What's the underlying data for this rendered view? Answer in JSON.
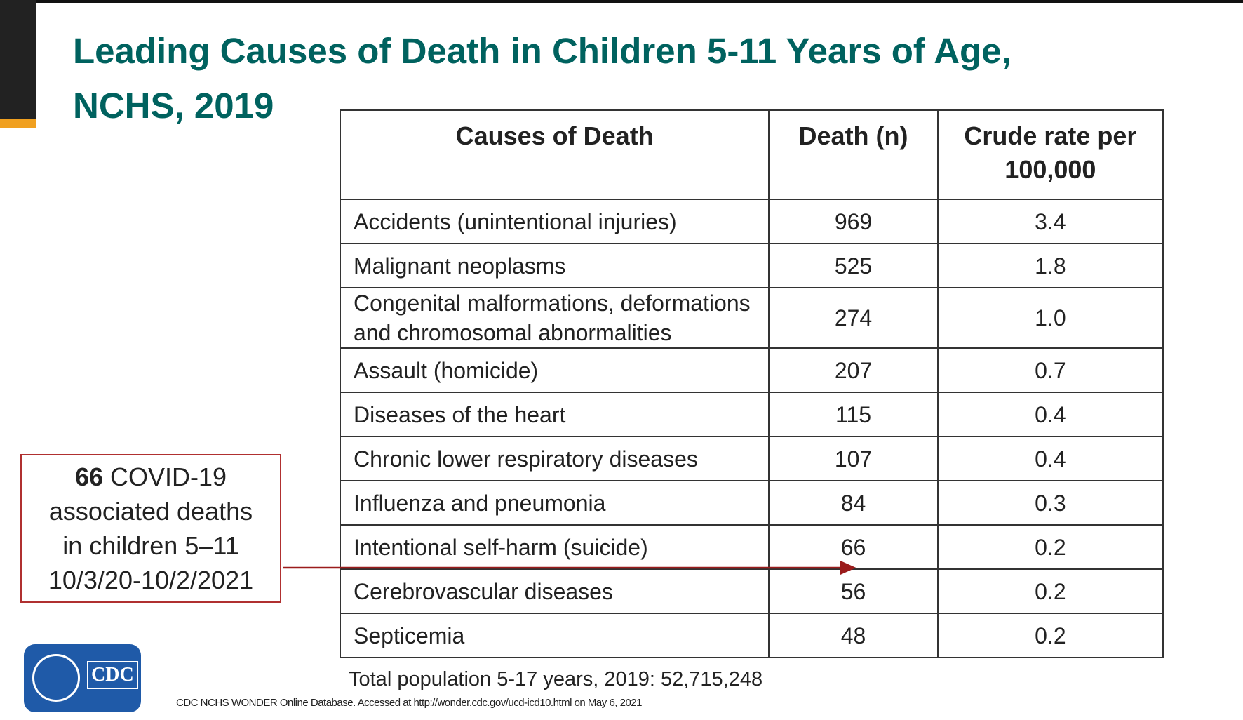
{
  "header": {
    "title_line1": "Leading Causes of Death in Children 5-11 Years of Age,",
    "title_line2": "NCHS, 2019"
  },
  "table": {
    "columns": [
      "Causes of Death",
      "Death (n)",
      "Crude rate per 100,000"
    ],
    "rows": [
      [
        "Accidents (unintentional injuries)",
        "969",
        "3.4"
      ],
      [
        "Malignant neoplasms",
        "525",
        "1.8"
      ],
      [
        "Congenital malformations, deformations and chromosomal abnormalities",
        "274",
        "1.0"
      ],
      [
        "Assault (homicide)",
        "207",
        "0.7"
      ],
      [
        "Diseases of the heart",
        "115",
        "0.4"
      ],
      [
        "Chronic lower respiratory diseases",
        "107",
        "0.4"
      ],
      [
        "Influenza and pneumonia",
        "84",
        "0.3"
      ],
      [
        "Intentional self-harm (suicide)",
        "66",
        "0.2"
      ],
      [
        "Cerebrovascular diseases",
        "56",
        "0.2"
      ],
      [
        "Septicemia",
        "48",
        "0.2"
      ]
    ]
  },
  "callout": {
    "count": "66",
    "lines": [
      "COVID-19",
      "associated deaths",
      "in children 5–11",
      "10/3/20-10/2/2021"
    ]
  },
  "footnote": "Total population 5-17 years, 2019: 52,715,248",
  "source": "CDC NCHS WONDER Online Database. Accessed at http://wonder.cdc.gov/ucd-icd10.html on May 6, 2021",
  "logo": {
    "text": "CDC"
  }
}
